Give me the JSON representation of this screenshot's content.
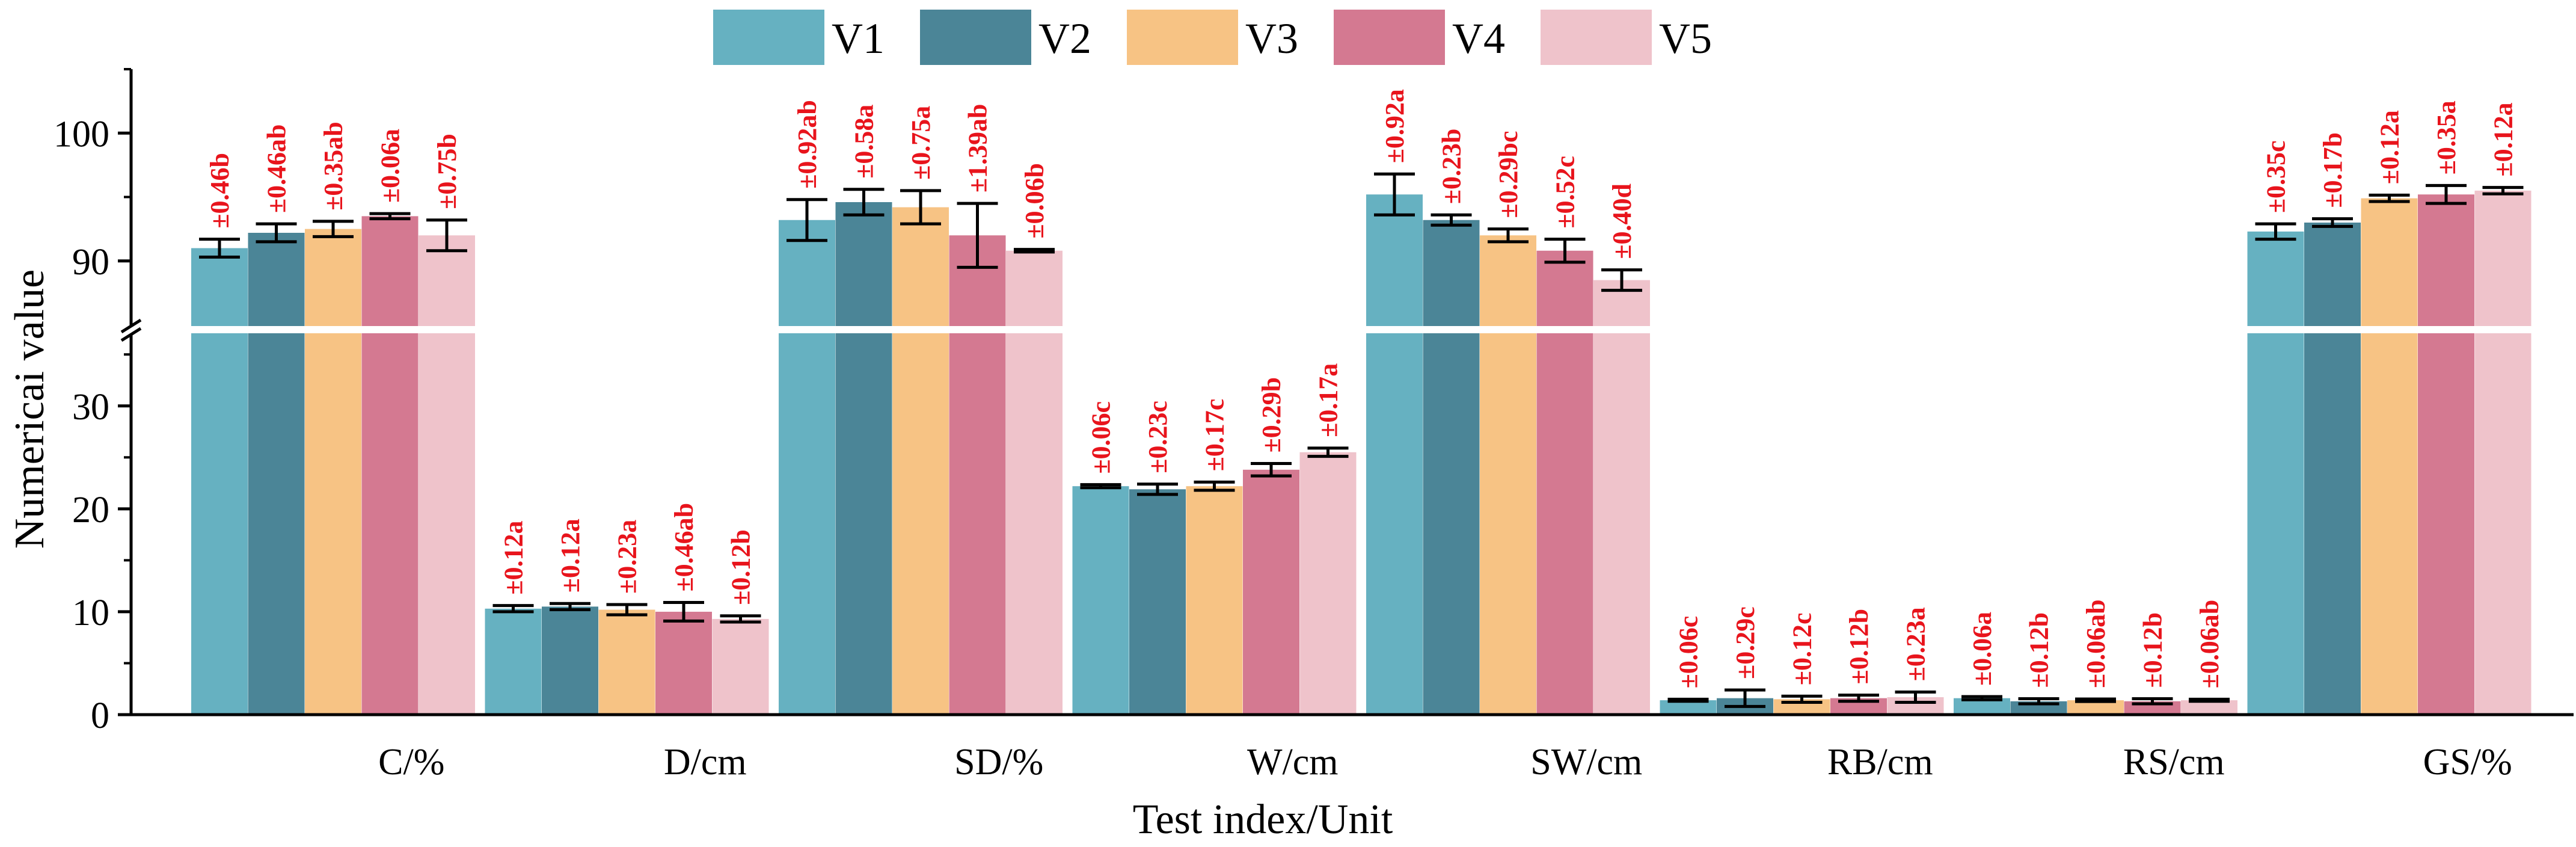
{
  "chart_data": {
    "type": "bar",
    "xlabel": "Test index/Unit",
    "ylabel": "Numericai value",
    "axis_break": {
      "lower_range": [
        0,
        37
      ],
      "upper_range": [
        85,
        105
      ]
    },
    "lower_ticks": [
      0,
      10,
      20,
      30
    ],
    "upper_ticks": [
      90,
      100
    ],
    "categories": [
      "C/%",
      "D/cm",
      "SD/%",
      "W/cm",
      "SW/cm",
      "RB/cm",
      "RS/cm",
      "GS/%"
    ],
    "series": [
      {
        "name": "V1",
        "color": "#66b1c1",
        "values": [
          91.0,
          10.3,
          93.2,
          22.2,
          95.2,
          1.4,
          1.6,
          92.3
        ],
        "errors": [
          0.7,
          0.3,
          1.6,
          0.15,
          1.6,
          0.1,
          0.15,
          0.6
        ],
        "labels": [
          "±0.46b",
          "±0.12a",
          "±0.92ab",
          "±0.06c",
          "±0.92a",
          "±0.06c",
          "±0.06a",
          "±0.35c"
        ]
      },
      {
        "name": "V2",
        "color": "#4b8597",
        "values": [
          92.2,
          10.5,
          94.6,
          21.9,
          93.2,
          1.6,
          1.3,
          93.0
        ],
        "errors": [
          0.7,
          0.3,
          1.0,
          0.5,
          0.4,
          0.8,
          0.25,
          0.3
        ],
        "labels": [
          "±0.46ab",
          "±0.12a",
          "±0.58a",
          "±0.23c",
          "±0.23b",
          "±0.29c",
          "±0.12b",
          "±0.17b"
        ]
      },
      {
        "name": "V3",
        "color": "#f7c384",
        "values": [
          92.5,
          10.2,
          94.2,
          22.2,
          92.0,
          1.5,
          1.4,
          94.9
        ],
        "errors": [
          0.6,
          0.5,
          1.3,
          0.4,
          0.5,
          0.3,
          0.12,
          0.25
        ],
        "labels": [
          "±0.35ab",
          "±0.23a",
          "±0.75a",
          "±0.17c",
          "±0.29bc",
          "±0.12c",
          "±0.06ab",
          "±0.12a"
        ]
      },
      {
        "name": "V4",
        "color": "#d47991",
        "values": [
          93.5,
          10.0,
          92.0,
          23.8,
          90.8,
          1.6,
          1.3,
          95.2
        ],
        "errors": [
          0.2,
          0.9,
          2.5,
          0.6,
          0.9,
          0.3,
          0.25,
          0.7
        ],
        "labels": [
          "±0.06a",
          "±0.46ab",
          "±1.39ab",
          "±0.29b",
          "±0.52c",
          "±0.12b",
          "±0.12b",
          "±0.35a"
        ]
      },
      {
        "name": "V5",
        "color": "#efc3cb",
        "values": [
          92.0,
          9.3,
          90.8,
          25.5,
          88.5,
          1.7,
          1.4,
          95.5
        ],
        "errors": [
          1.2,
          0.3,
          0.1,
          0.4,
          0.8,
          0.5,
          0.1,
          0.25
        ],
        "labels": [
          "±0.75b",
          "±0.12b",
          "±0.06b",
          "±0.17a",
          "±0.40d",
          "±0.23a",
          "±0.06ab",
          "±0.12a"
        ]
      }
    ]
  }
}
